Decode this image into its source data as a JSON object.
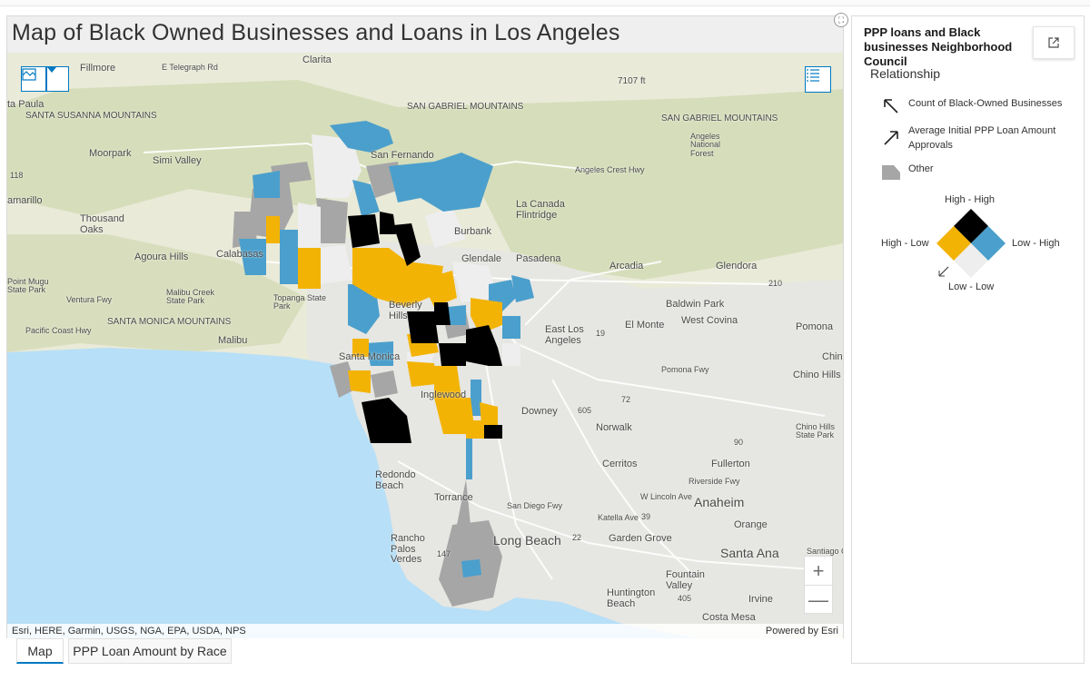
{
  "map": {
    "title": "Map of Black Owned Businesses and Loans in Los Angeles",
    "attribution_left": "Esri, HERE, Garmin, USGS, NGA, EPA, USDA, NPS",
    "attribution_right": "Powered by Esri",
    "zoom_in": "+",
    "zoom_out": "—",
    "icons": {
      "basemap": "basemap-gallery-icon",
      "dropdown": "chevron-down-icon",
      "legend": "legend-list-icon",
      "fullscreen": "fullscreen-icon"
    },
    "colors": {
      "high_high": "#000000",
      "high_low": "#f3b305",
      "low_high": "#4b9fcc",
      "low_low": "#eeeeee",
      "other": "#a6a6a6",
      "ocean": "#b7dff7",
      "land": "#e9ead8",
      "accent": "#0079c1"
    },
    "places": {
      "fillmore": "Fillmore",
      "telegraph": "E Telegraph Rd",
      "clarita": "Clarita",
      "elev": "7107 ft",
      "santa_paula": "ta Paula",
      "susana": "SANTA SUSANNA MOUNTAINS",
      "san_gabriel_mtns": "SAN GABRIEL MOUNTAINS",
      "san_gabriel_mtns2": "SAN GABRIEL MOUNTAINS",
      "angeles_nf": "Angeles National Forest",
      "moorpark": "Moorpark",
      "simi": "Simi Valley",
      "san_fernando": "San Fernando",
      "crest": "Angeles Crest Hwy",
      "hwy118": "118",
      "camarillo": "amarillo",
      "thousand_oaks": "Thousand Oaks",
      "la_canada": "La Canada Flintridge",
      "burbank": "Burbank",
      "agoura": "Agoura Hills",
      "calabasas": "Calabasas",
      "glendale": "Glendale",
      "pasadena": "Pasadena",
      "arcadia": "Arcadia",
      "glendora": "Glendora",
      "hwy210": "210",
      "point_state": "Point Mugu State Park",
      "ventura": "Ventura Fwy",
      "malibu_creek": "Malibu Creek State Park",
      "topanga": "Topanga State Park",
      "baldwin": "Baldwin Park",
      "beverly": "Beverly Hills",
      "el_monte": "El Monte",
      "west_covina": "West Covina",
      "pomona": "Pomona",
      "pch": "Pacific Coast Hwy",
      "santa_monica_mtns": "SANTA MONICA MOUNTAINS",
      "malibu": "Malibu",
      "east_la": "East Los Angeles",
      "hwy19": "19",
      "chino": "Chin",
      "santa_monica": "Santa Monica",
      "pomona_fwy": "Pomona Fwy",
      "chino_hills": "Chino Hills",
      "inglewood": "Inglewood",
      "downey": "Downey",
      "hwy605": "605",
      "hwy72": "72",
      "norwalk": "Norwalk",
      "chino_hills_sp": "Chino Hills State Park",
      "hwy90": "90",
      "cerritos": "Cerritos",
      "fullerton": "Fullerton",
      "riverside_fwy": "Riverside Fwy",
      "redondo": "Redondo Beach",
      "torrance": "Torrance",
      "lincoln": "W Lincoln Ave",
      "anaheim": "Anaheim",
      "san_diego_fwy": "San Diego Fwy",
      "katella": "Katella Ave",
      "hwy39": "39",
      "orange": "Orange",
      "rancho": "Rancho Palos Verdes",
      "long_beach": "Long Beach",
      "hwy22": "22",
      "garden_grove": "Garden Grove",
      "santa_ana": "Santa Ana",
      "santiago": "Santiago Ca",
      "hwy147": "147",
      "fountain": "Fountain Valley",
      "huntington": "Huntington Beach",
      "hwy405": "405",
      "irvine": "Irvine",
      "costa_mesa": "Costa Mesa"
    }
  },
  "tabs": [
    {
      "label": "Map"
    },
    {
      "label": "PPP Loan Amount by Race"
    }
  ],
  "legend": {
    "title": "PPP loans and Black businesses Neighborhood Council",
    "open_icon": "open-external-icon",
    "section": "Relationship",
    "items": [
      {
        "icon": "arrow-up-left-icon",
        "label": "Count of Black-Owned Businesses"
      },
      {
        "icon": "arrow-up-right-icon",
        "label": "Average Initial PPP Loan Amount Approvals"
      },
      {
        "icon": "polygon-swatch-icon",
        "label": "Other"
      }
    ],
    "high_high": "High - High",
    "high_low": "High - Low",
    "low_high": "Low - High",
    "low_low": "Low - Low"
  }
}
